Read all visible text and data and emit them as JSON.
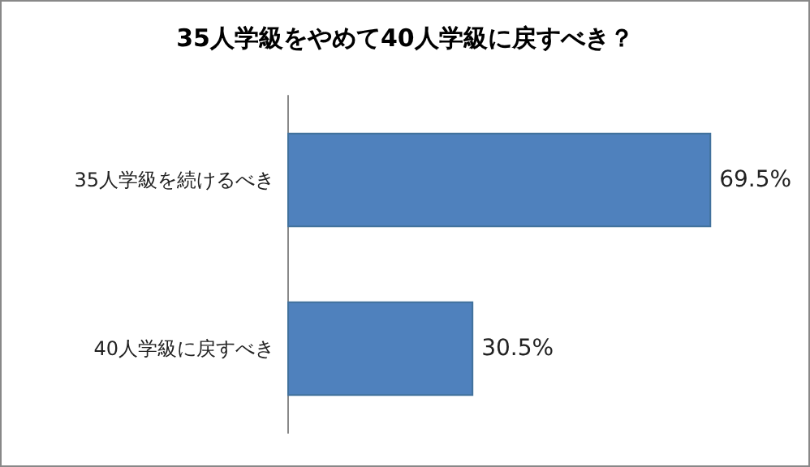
{
  "chart_data": {
    "type": "bar",
    "orientation": "horizontal",
    "title": "35人学級をやめて40人学級に戻すべき？",
    "categories": [
      "35人学級を続けるべき",
      "40人学級に戻すべき"
    ],
    "values": [
      69.5,
      30.5
    ],
    "value_labels": [
      "69.5%",
      "30.5%"
    ],
    "color": "#4f81bd",
    "tick_labels": "y"
  }
}
